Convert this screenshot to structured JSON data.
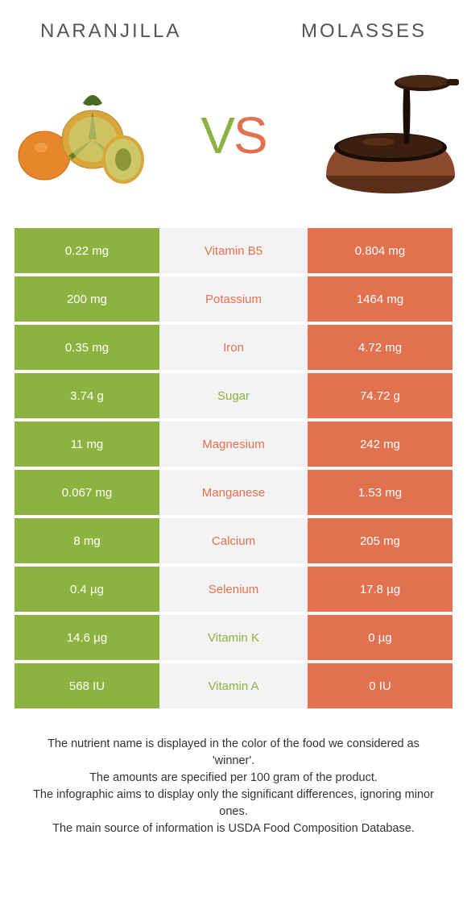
{
  "header": {
    "left_title": "Naranjilla",
    "right_title": "molasses"
  },
  "vs": {
    "v": "V",
    "s": "S"
  },
  "colors": {
    "left": "#8cb33f",
    "right": "#e2724f",
    "mid_bg": "#f3f3f3",
    "text_green": "#8cb33f",
    "text_orange": "#e2724f"
  },
  "rows": [
    {
      "left": "0.22 mg",
      "label": "Vitamin B5",
      "right": "0.804 mg",
      "winner": "right"
    },
    {
      "left": "200 mg",
      "label": "Potassium",
      "right": "1464 mg",
      "winner": "right"
    },
    {
      "left": "0.35 mg",
      "label": "Iron",
      "right": "4.72 mg",
      "winner": "right"
    },
    {
      "left": "3.74 g",
      "label": "Sugar",
      "right": "74.72 g",
      "winner": "left"
    },
    {
      "left": "11 mg",
      "label": "Magnesium",
      "right": "242 mg",
      "winner": "right"
    },
    {
      "left": "0.067 mg",
      "label": "Manganese",
      "right": "1.53 mg",
      "winner": "right"
    },
    {
      "left": "8 mg",
      "label": "Calcium",
      "right": "205 mg",
      "winner": "right"
    },
    {
      "left": "0.4 µg",
      "label": "Selenium",
      "right": "17.8 µg",
      "winner": "right"
    },
    {
      "left": "14.6 µg",
      "label": "Vitamin K",
      "right": "0 µg",
      "winner": "left"
    },
    {
      "left": "568 IU",
      "label": "Vitamin A",
      "right": "0 IU",
      "winner": "left"
    }
  ],
  "footer": {
    "line1": "The nutrient name is displayed in the color of the food we considered as 'winner'.",
    "line2": "The amounts are specified per 100 gram of the product.",
    "line3": "The infographic aims to display only the significant differences, ignoring minor ones.",
    "line4": "The main source of information is USDA Food Composition Database."
  }
}
